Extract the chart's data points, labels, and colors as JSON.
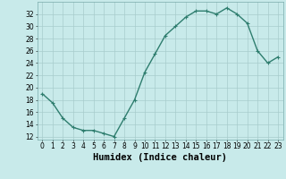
{
  "x": [
    0,
    1,
    2,
    3,
    4,
    5,
    6,
    7,
    8,
    9,
    10,
    11,
    12,
    13,
    14,
    15,
    16,
    17,
    18,
    19,
    20,
    21,
    22,
    23
  ],
  "y": [
    19,
    17.5,
    15,
    13.5,
    13,
    13,
    12.5,
    12,
    15,
    18,
    22.5,
    25.5,
    28.5,
    30,
    31.5,
    32.5,
    32.5,
    32,
    33,
    32,
    30.5,
    26,
    24,
    25
  ],
  "line_color": "#2e7d6e",
  "marker": "+",
  "marker_color": "#2e7d6e",
  "bg_color": "#c8eaea",
  "grid_color": "#a8cccc",
  "xlabel": "Humidex (Indice chaleur)",
  "xlim": [
    -0.5,
    23.5
  ],
  "ylim": [
    11.5,
    34
  ],
  "yticks": [
    12,
    14,
    16,
    18,
    20,
    22,
    24,
    26,
    28,
    30,
    32
  ],
  "xticks": [
    0,
    1,
    2,
    3,
    4,
    5,
    6,
    7,
    8,
    9,
    10,
    11,
    12,
    13,
    14,
    15,
    16,
    17,
    18,
    19,
    20,
    21,
    22,
    23
  ],
  "tick_label_fontsize": 5.5,
  "xlabel_fontsize": 7.5,
  "linewidth": 1.0,
  "markersize": 3.5
}
